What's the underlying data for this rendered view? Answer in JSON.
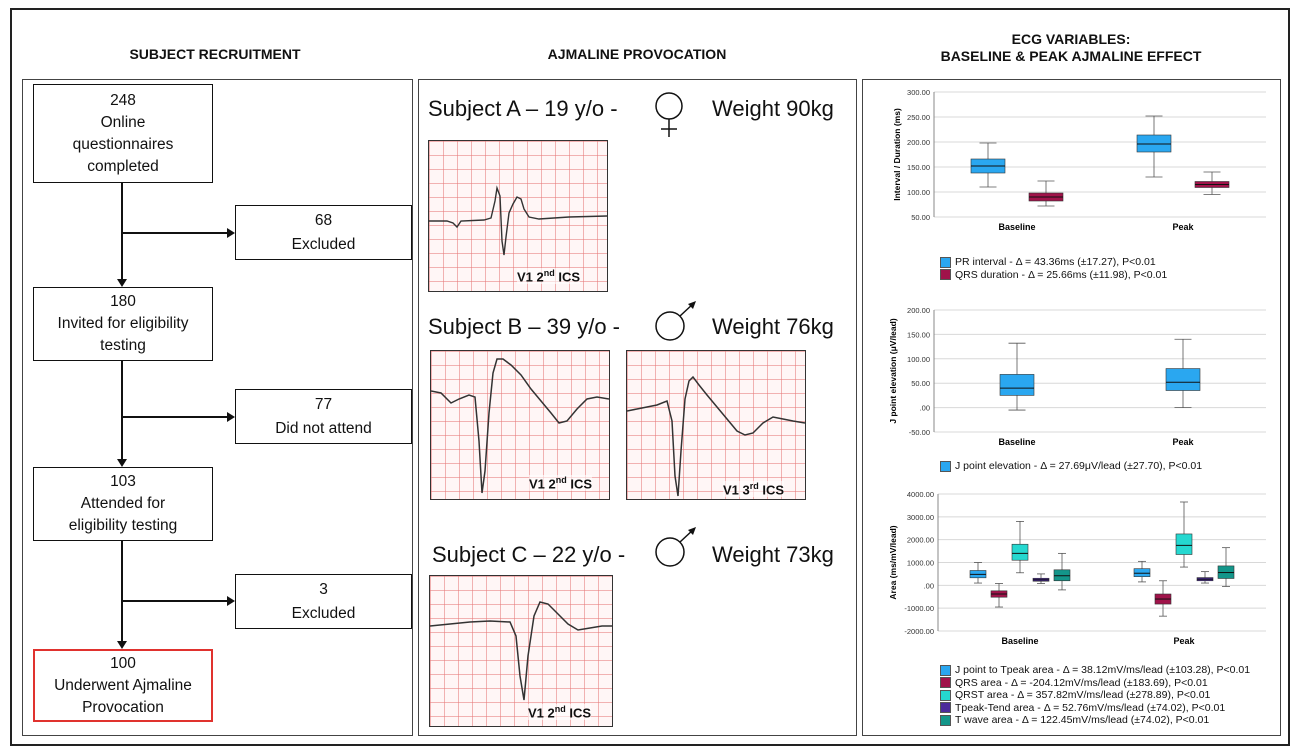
{
  "headers": {
    "col1": "SUBJECT RECRUITMENT",
    "col2": "AJMALINE PROVOCATION",
    "col3_line1": "ECG VARIABLES:",
    "col3_line2": "BASELINE & PEAK AJMALINE EFFECT"
  },
  "flow": {
    "box1": [
      "248",
      "Online",
      "questionnaires",
      "completed"
    ],
    "excl1": [
      "68",
      "Excluded"
    ],
    "box2": [
      "180",
      "Invited for eligibility",
      "testing"
    ],
    "excl2": [
      "77",
      "Did not attend"
    ],
    "box3": [
      "103",
      "Attended for",
      "eligibility testing"
    ],
    "excl3": [
      "3",
      "Excluded"
    ],
    "box4": [
      "100",
      "Underwent Ajmaline",
      "Provocation"
    ]
  },
  "subjects": [
    {
      "label": "Subject A – 19 y/o -",
      "sex": "female",
      "weight": "Weight 90kg",
      "ecgs": [
        {
          "lead": "V1 2",
          "sup": "nd",
          "tail": " ICS"
        }
      ]
    },
    {
      "label": "Subject B – 39 y/o -",
      "sex": "male",
      "weight": "Weight 76kg",
      "ecgs": [
        {
          "lead": "V1 2",
          "sup": "nd",
          "tail": " ICS"
        },
        {
          "lead": "V1 3",
          "sup": "rd",
          "tail": " ICS"
        }
      ]
    },
    {
      "label": "Subject C – 22 y/o -",
      "sex": "male",
      "weight": "Weight 73kg",
      "ecgs": [
        {
          "lead": "V1 2",
          "sup": "nd",
          "tail": " ICS"
        }
      ]
    }
  ],
  "colors": {
    "pr": "#2aa7f0",
    "qrs": "#a0134a",
    "jpoint": "#2aa7f0",
    "qrst": "#25d8d0",
    "tpeak_tend": "#4b2a9b",
    "twave": "#13968a"
  },
  "chart_data": [
    {
      "type": "boxplot",
      "ylabel": "Interval / Duration (ms)",
      "ylim": [
        50,
        300
      ],
      "yticks": [
        "50.00",
        "100.00",
        "150.00",
        "200.00",
        "250.00",
        "300.00"
      ],
      "categories": [
        "Baseline",
        "Peak"
      ],
      "series": [
        {
          "name": "PR interval",
          "color_key": "pr",
          "boxes": [
            [
              110,
              138,
              152,
              166,
              198
            ],
            [
              130,
              180,
              196,
              214,
              252
            ]
          ]
        },
        {
          "name": "QRS duration",
          "color_key": "qrs",
          "boxes": [
            [
              72,
              82,
              90,
              98,
              122
            ],
            [
              95,
              109,
              115,
              121,
              140
            ]
          ]
        }
      ],
      "legend": [
        {
          "text": "PR interval - Δ = 43.36ms (±17.27), P<0.01",
          "color_key": "pr"
        },
        {
          "text": "QRS duration - Δ = 25.66ms (±11.98), P<0.01",
          "color_key": "qrs"
        }
      ]
    },
    {
      "type": "boxplot",
      "ylabel": "J point elevation (μV/lead)",
      "ylim": [
        -50,
        200
      ],
      "yticks": [
        "-50.00",
        ".00",
        "50.00",
        "100.00",
        "150.00",
        "200.00"
      ],
      "categories": [
        "Baseline",
        "Peak"
      ],
      "series": [
        {
          "name": "J point elevation",
          "color_key": "jpoint",
          "boxes": [
            [
              -5,
              25,
              40,
              68,
              132
            ],
            [
              0,
              35,
              52,
              80,
              140
            ]
          ]
        }
      ],
      "legend": [
        {
          "text": "J point elevation - Δ = 27.69μV/lead (±27.70), P<0.01",
          "color_key": "jpoint"
        }
      ]
    },
    {
      "type": "boxplot",
      "ylabel": "Area (ms/mV/lead)",
      "ylim": [
        -2000,
        4000
      ],
      "yticks": [
        "-2000.00",
        "-1000.00",
        ".00",
        "1000.00",
        "2000.00",
        "3000.00",
        "4000.00"
      ],
      "categories": [
        "Baseline",
        "Peak"
      ],
      "series": [
        {
          "name": "J point to Tpeak area",
          "color_key": "jpoint",
          "boxes": [
            [
              100,
              330,
              480,
              650,
              1000
            ],
            [
              150,
              380,
              530,
              730,
              1050
            ]
          ]
        },
        {
          "name": "QRS area",
          "color_key": "qrs",
          "boxes": [
            [
              -950,
              -520,
              -380,
              -240,
              80
            ],
            [
              -1350,
              -820,
              -600,
              -380,
              200
            ]
          ]
        },
        {
          "name": "QRST area",
          "color_key": "qrst",
          "boxes": [
            [
              550,
              1100,
              1400,
              1800,
              2800
            ],
            [
              800,
              1350,
              1750,
              2250,
              3650
            ]
          ]
        },
        {
          "name": "Tpeak-Tend area",
          "color_key": "tpeak_tend",
          "boxes": [
            [
              80,
              180,
              240,
              310,
              500
            ],
            [
              100,
              200,
              270,
              340,
              600
            ]
          ]
        },
        {
          "name": "T wave area",
          "color_key": "twave",
          "boxes": [
            [
              -200,
              200,
              420,
              680,
              1400
            ],
            [
              -50,
              300,
              560,
              850,
              1650
            ]
          ]
        }
      ],
      "legend": [
        {
          "text": "J point to Tpeak area - Δ = 38.12mV/ms/lead (±103.28), P<0.01",
          "color_key": "jpoint"
        },
        {
          "text": "QRS area - Δ = -204.12mV/ms/lead (±183.69), P<0.01",
          "color_key": "qrs"
        },
        {
          "text": "QRST area - Δ = 357.82mV/ms/lead (±278.89), P<0.01",
          "color_key": "qrst"
        },
        {
          "text": "Tpeak-Tend area - Δ = 52.76mV/ms/lead (±74.02), P<0.01",
          "color_key": "tpeak_tend"
        },
        {
          "text": "T wave area - Δ = 122.45mV/ms/lead (±74.02), P<0.01",
          "color_key": "twave"
        }
      ]
    }
  ]
}
